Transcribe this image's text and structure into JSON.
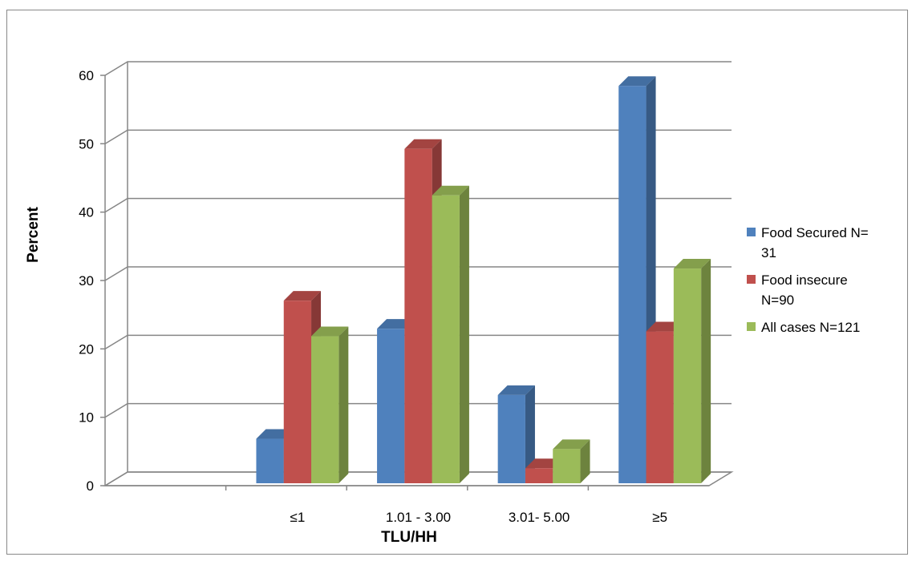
{
  "chart_data": {
    "type": "bar",
    "title": "",
    "xlabel": "TLU/HH",
    "ylabel": "Percent",
    "categories": [
      "",
      "≤1",
      "1.01 - 3.00",
      "3.01- 5.00",
      "≥5"
    ],
    "series": [
      {
        "name": "Food Secured N= 31",
        "legend_lines": [
          "Food Secured N=",
          "31"
        ],
        "color": "#4F81BD",
        "values": [
          null,
          6.5,
          22.6,
          12.9,
          58.1
        ]
      },
      {
        "name": "Food insecure N=90",
        "legend_lines": [
          "Food insecure",
          "N=90"
        ],
        "color": "#C0504D",
        "values": [
          null,
          26.7,
          48.9,
          2.2,
          22.2
        ]
      },
      {
        "name": "All cases N=121",
        "legend_lines": [
          "All cases N=121"
        ],
        "color": "#9BBB59",
        "values": [
          null,
          21.5,
          42.1,
          5.0,
          31.4
        ]
      }
    ],
    "y_ticks": [
      "0",
      "10",
      "20",
      "30",
      "40",
      "50",
      "60"
    ],
    "ylim": [
      0,
      60
    ],
    "grid": true,
    "legend_position": "right",
    "style": "3d-clustered-column"
  }
}
